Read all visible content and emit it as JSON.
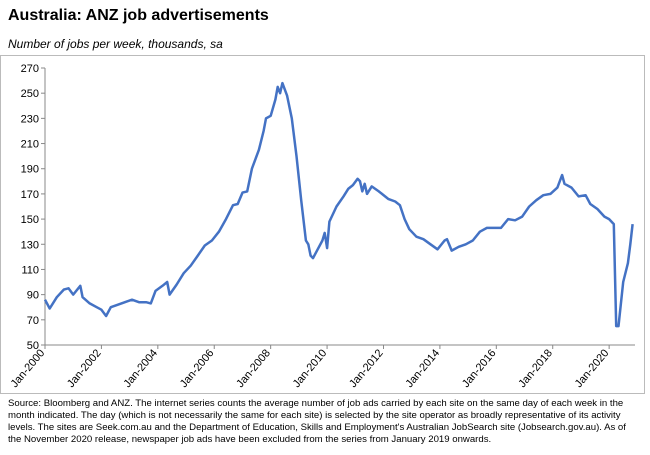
{
  "chart_data": {
    "type": "line",
    "title": "Australia: ANZ job advertisements",
    "subtitle": "Number of jobs per week, thousands, sa",
    "notes": [
      "Source: Bloomberg and ANZ.  The internet series counts the average number of job ads carried by each site on the same day of each week in the",
      "month indicated. The day (which is not necessarily the same for each site) is selected by the site operator as broadly representative of its activity",
      "levels. The sites are Seek.com.au and the Department of Education, Skills and Employment's Australian JobSearch site (Jobsearch.gov.au). As of",
      "the November 2020 release, newspaper job ads have been excluded from the series from January 2019 onwards."
    ],
    "x": [
      "2000-01",
      "2000-03",
      "2000-06",
      "2000-09",
      "2000-11",
      "2001-01",
      "2001-04",
      "2001-05",
      "2001-08",
      "2001-11",
      "2002-01",
      "2002-03",
      "2002-05",
      "2002-08",
      "2002-11",
      "2003-02",
      "2003-05",
      "2003-08",
      "2003-10",
      "2003-12",
      "2004-03",
      "2004-05",
      "2004-06",
      "2004-09",
      "2004-12",
      "2005-03",
      "2005-06",
      "2005-09",
      "2005-12",
      "2006-03",
      "2006-06",
      "2006-09",
      "2006-11",
      "2007-01",
      "2007-03",
      "2007-05",
      "2007-08",
      "2007-10",
      "2007-11",
      "2008-01",
      "2008-03",
      "2008-04",
      "2008-05",
      "2008-06",
      "2008-08",
      "2008-10",
      "2008-12",
      "2009-02",
      "2009-04",
      "2009-05",
      "2009-06",
      "2009-07",
      "2009-09",
      "2009-11",
      "2009-12",
      "2010-01",
      "2010-02",
      "2010-05",
      "2010-08",
      "2010-10",
      "2010-12",
      "2011-02",
      "2011-03",
      "2011-04",
      "2011-05",
      "2011-06",
      "2011-08",
      "2011-11",
      "2012-03",
      "2012-06",
      "2012-08",
      "2012-10",
      "2012-12",
      "2013-03",
      "2013-06",
      "2013-09",
      "2013-12",
      "2014-03",
      "2014-04",
      "2014-06",
      "2014-09",
      "2014-12",
      "2015-03",
      "2015-06",
      "2015-09",
      "2015-12",
      "2016-03",
      "2016-06",
      "2016-09",
      "2016-12",
      "2017-03",
      "2017-06",
      "2017-09",
      "2017-12",
      "2018-03",
      "2018-05",
      "2018-06",
      "2018-09",
      "2018-12",
      "2019-03",
      "2019-05",
      "2019-08",
      "2019-11",
      "2020-01",
      "2020-03",
      "2020-04",
      "2020-05",
      "2020-07",
      "2020-09",
      "2020-10",
      "2020-11"
    ],
    "series": [
      {
        "color": "#4472c4",
        "values": [
          86,
          79,
          88,
          94,
          95,
          90,
          97,
          88,
          83,
          80,
          78,
          73,
          80,
          82,
          84,
          86,
          84,
          84,
          83,
          93,
          97,
          100,
          90,
          98,
          107,
          113,
          121,
          129,
          133,
          140,
          150,
          161,
          162,
          171,
          172,
          190,
          205,
          220,
          230,
          232,
          245,
          255,
          250,
          258,
          248,
          230,
          200,
          165,
          133,
          130,
          121,
          119,
          126,
          133,
          139,
          127,
          148,
          160,
          168,
          174,
          177,
          182,
          180,
          172,
          178,
          170,
          176,
          172,
          166,
          164,
          161,
          150,
          142,
          136,
          134,
          130,
          126,
          133,
          134,
          125,
          128,
          130,
          133,
          140,
          143,
          143,
          143,
          150,
          149,
          152,
          160,
          165,
          169,
          170,
          175,
          185,
          178,
          175,
          168,
          169,
          162,
          158,
          152,
          150,
          146,
          65,
          65,
          100,
          115,
          130,
          146
        ]
      }
    ],
    "xlim": [
      "2000-01",
      "2020-12"
    ],
    "xticks": [
      {
        "value": "2000-01",
        "label": "Jan-2000"
      },
      {
        "value": "2002-01",
        "label": "Jan-2002"
      },
      {
        "value": "2004-01",
        "label": "Jan-2004"
      },
      {
        "value": "2006-01",
        "label": "Jan-2006"
      },
      {
        "value": "2008-01",
        "label": "Jan-2008"
      },
      {
        "value": "2010-01",
        "label": "Jan-2010"
      },
      {
        "value": "2012-01",
        "label": "Jan-2012"
      },
      {
        "value": "2014-01",
        "label": "Jan-2014"
      },
      {
        "value": "2016-01",
        "label": "Jan-2016"
      },
      {
        "value": "2018-01",
        "label": "Jan-2018"
      },
      {
        "value": "2020-01",
        "label": "Jan-2020"
      }
    ],
    "ylim": [
      50,
      270
    ],
    "yticks": [
      50,
      70,
      90,
      110,
      130,
      150,
      170,
      190,
      210,
      230,
      250,
      270
    ],
    "grid": false
  }
}
